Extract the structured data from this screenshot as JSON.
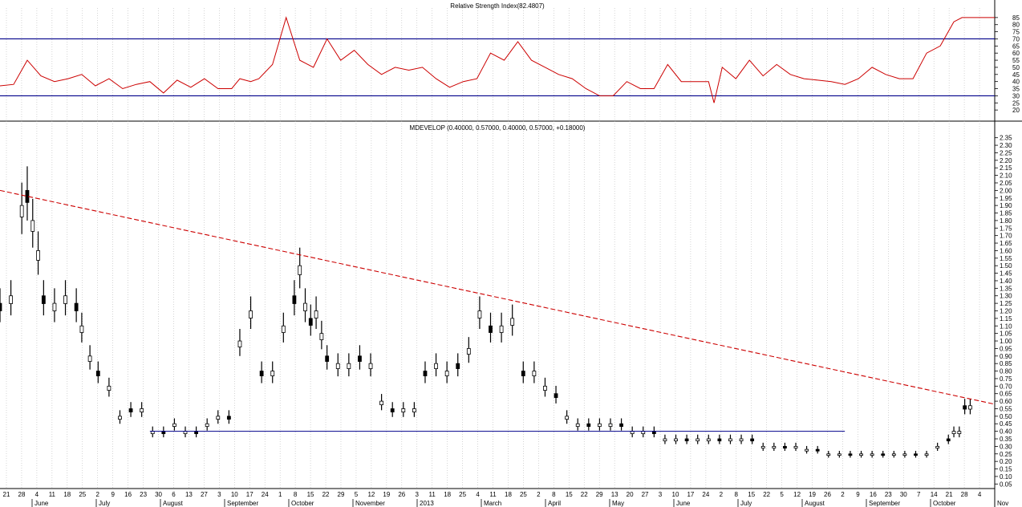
{
  "colors": {
    "background": "#ffffff",
    "grid": "#b9b9b9",
    "rsi_line": "#cc0000",
    "rsi_bands": "#00008b",
    "price_bars": "#000000",
    "resistance_trend": "#cc0000",
    "support_line": "#00008b"
  },
  "chart_data": [
    {
      "type": "line",
      "title": "Relative Strength Index(82.4807)",
      "ylim": [
        15,
        90
      ],
      "yticks": [
        20,
        25,
        30,
        35,
        40,
        45,
        50,
        55,
        60,
        65,
        70,
        75,
        80,
        85
      ],
      "bands": [
        70,
        30
      ],
      "grid": true,
      "x_index": [
        0,
        5,
        10,
        15,
        20,
        25,
        30,
        35,
        40,
        45,
        50,
        55,
        60,
        65,
        70,
        75,
        80,
        85,
        88,
        92,
        95,
        100,
        105,
        110,
        115,
        120,
        125,
        130,
        135,
        140,
        145,
        150,
        155,
        160,
        165,
        170,
        175,
        180,
        185,
        190,
        195,
        200,
        205,
        210,
        215,
        220,
        225,
        230,
        235,
        240,
        245,
        250,
        255,
        260,
        262,
        265,
        270,
        275,
        280,
        285,
        290,
        295,
        300,
        305,
        310,
        315,
        320,
        325,
        330,
        335,
        340,
        345,
        350,
        353,
        356,
        360,
        365
      ],
      "values": [
        37,
        38,
        55,
        44,
        40,
        42,
        45,
        37,
        42,
        35,
        38,
        40,
        32,
        41,
        36,
        42,
        35,
        35,
        42,
        40,
        42,
        52,
        85,
        55,
        50,
        70,
        55,
        62,
        52,
        45,
        50,
        48,
        50,
        42,
        36,
        40,
        42,
        60,
        55,
        68,
        55,
        50,
        45,
        42,
        35,
        30,
        30,
        40,
        35,
        35,
        52,
        40,
        40,
        40,
        25,
        50,
        42,
        55,
        44,
        52,
        45,
        42,
        41,
        40,
        38,
        42,
        50,
        45,
        42,
        42,
        60,
        65,
        82,
        85,
        85,
        85,
        85
      ]
    },
    {
      "type": "bar",
      "subtype": "ohlc",
      "title": "MDEVELOP (0.40000, 0.57000, 0.40000, 0.57000, +0.18000)",
      "ylim": [
        0.025,
        2.375
      ],
      "yticks": [
        0.05,
        0.1,
        0.15,
        0.2,
        0.25,
        0.3,
        0.35,
        0.4,
        0.45,
        0.5,
        0.55,
        0.6,
        0.65,
        0.7,
        0.75,
        0.8,
        0.85,
        0.9,
        0.95,
        1.0,
        1.05,
        1.1,
        1.15,
        1.2,
        1.25,
        1.3,
        1.35,
        1.4,
        1.45,
        1.5,
        1.55,
        1.6,
        1.65,
        1.7,
        1.75,
        1.8,
        1.85,
        1.9,
        1.95,
        2.0,
        2.05,
        2.1,
        2.15,
        2.2,
        2.25,
        2.3,
        2.35
      ],
      "grid": true,
      "x_index": [
        0,
        4,
        8,
        10,
        12,
        14,
        16,
        20,
        24,
        28,
        30,
        33,
        36,
        40,
        44,
        48,
        52,
        56,
        60,
        64,
        68,
        72,
        76,
        80,
        84,
        88,
        92,
        96,
        100,
        104,
        108,
        110,
        112,
        114,
        116,
        118,
        120,
        124,
        128,
        132,
        136,
        140,
        144,
        148,
        152,
        156,
        160,
        164,
        168,
        172,
        176,
        180,
        184,
        188,
        192,
        196,
        200,
        204,
        208,
        212,
        216,
        220,
        224,
        228,
        232,
        236,
        240,
        244,
        248,
        252,
        256,
        260,
        264,
        268,
        272,
        276,
        280,
        284,
        288,
        292,
        296,
        300,
        304,
        308,
        312,
        316,
        320,
        324,
        328,
        332,
        336,
        340,
        344,
        348,
        350,
        352,
        354,
        356
      ],
      "values": [
        1.25,
        1.3,
        1.9,
        2.0,
        1.8,
        1.6,
        1.3,
        1.25,
        1.3,
        1.25,
        1.1,
        0.9,
        0.8,
        0.7,
        0.5,
        0.55,
        0.55,
        0.4,
        0.4,
        0.45,
        0.4,
        0.4,
        0.45,
        0.5,
        0.5,
        1.0,
        1.2,
        0.8,
        0.8,
        1.1,
        1.3,
        1.5,
        1.25,
        1.15,
        1.2,
        1.05,
        0.9,
        0.85,
        0.85,
        0.9,
        0.85,
        0.6,
        0.55,
        0.55,
        0.55,
        0.8,
        0.85,
        0.8,
        0.85,
        0.95,
        1.2,
        1.1,
        1.1,
        1.15,
        0.8,
        0.8,
        0.7,
        0.65,
        0.5,
        0.45,
        0.45,
        0.45,
        0.45,
        0.45,
        0.4,
        0.4,
        0.4,
        0.35,
        0.35,
        0.35,
        0.35,
        0.35,
        0.35,
        0.35,
        0.35,
        0.35,
        0.3,
        0.3,
        0.3,
        0.3,
        0.28,
        0.28,
        0.25,
        0.25,
        0.25,
        0.25,
        0.25,
        0.25,
        0.25,
        0.25,
        0.25,
        0.25,
        0.3,
        0.35,
        0.4,
        0.4,
        0.57,
        0.57
      ],
      "lines": [
        {
          "kind": "trendline",
          "style": "dashed",
          "from": [
            0,
            2.0
          ],
          "to": [
            365,
            0.58
          ]
        },
        {
          "kind": "support",
          "style": "solid",
          "from": [
            55,
            0.4
          ],
          "to": [
            310,
            0.4
          ]
        }
      ],
      "x_day_labels": [
        "21",
        "28",
        "4",
        "11",
        "18",
        "25",
        "2",
        "9",
        "16",
        "23",
        "30",
        "6",
        "13",
        "27",
        "3",
        "10",
        "17",
        "24",
        "1",
        "8",
        "15",
        "22",
        "29",
        "5",
        "12",
        "19",
        "26",
        "3",
        "11",
        "18",
        "25",
        "4",
        "11",
        "18",
        "25",
        "2",
        "8",
        "15",
        "22",
        "29",
        "13",
        "20",
        "27",
        "3",
        "10",
        "17",
        "24",
        "2",
        "8",
        "15",
        "22",
        "5",
        "12",
        "19",
        "26",
        "2",
        "9",
        "16",
        "23",
        "30",
        "7",
        "14",
        "21",
        "28",
        "4"
      ],
      "x_month_labels": [
        "June",
        "July",
        "August",
        "September",
        "October",
        "November",
        "2013",
        "March",
        "April",
        "May",
        "June",
        "July",
        "August",
        "September",
        "October",
        "Nov"
      ]
    }
  ]
}
